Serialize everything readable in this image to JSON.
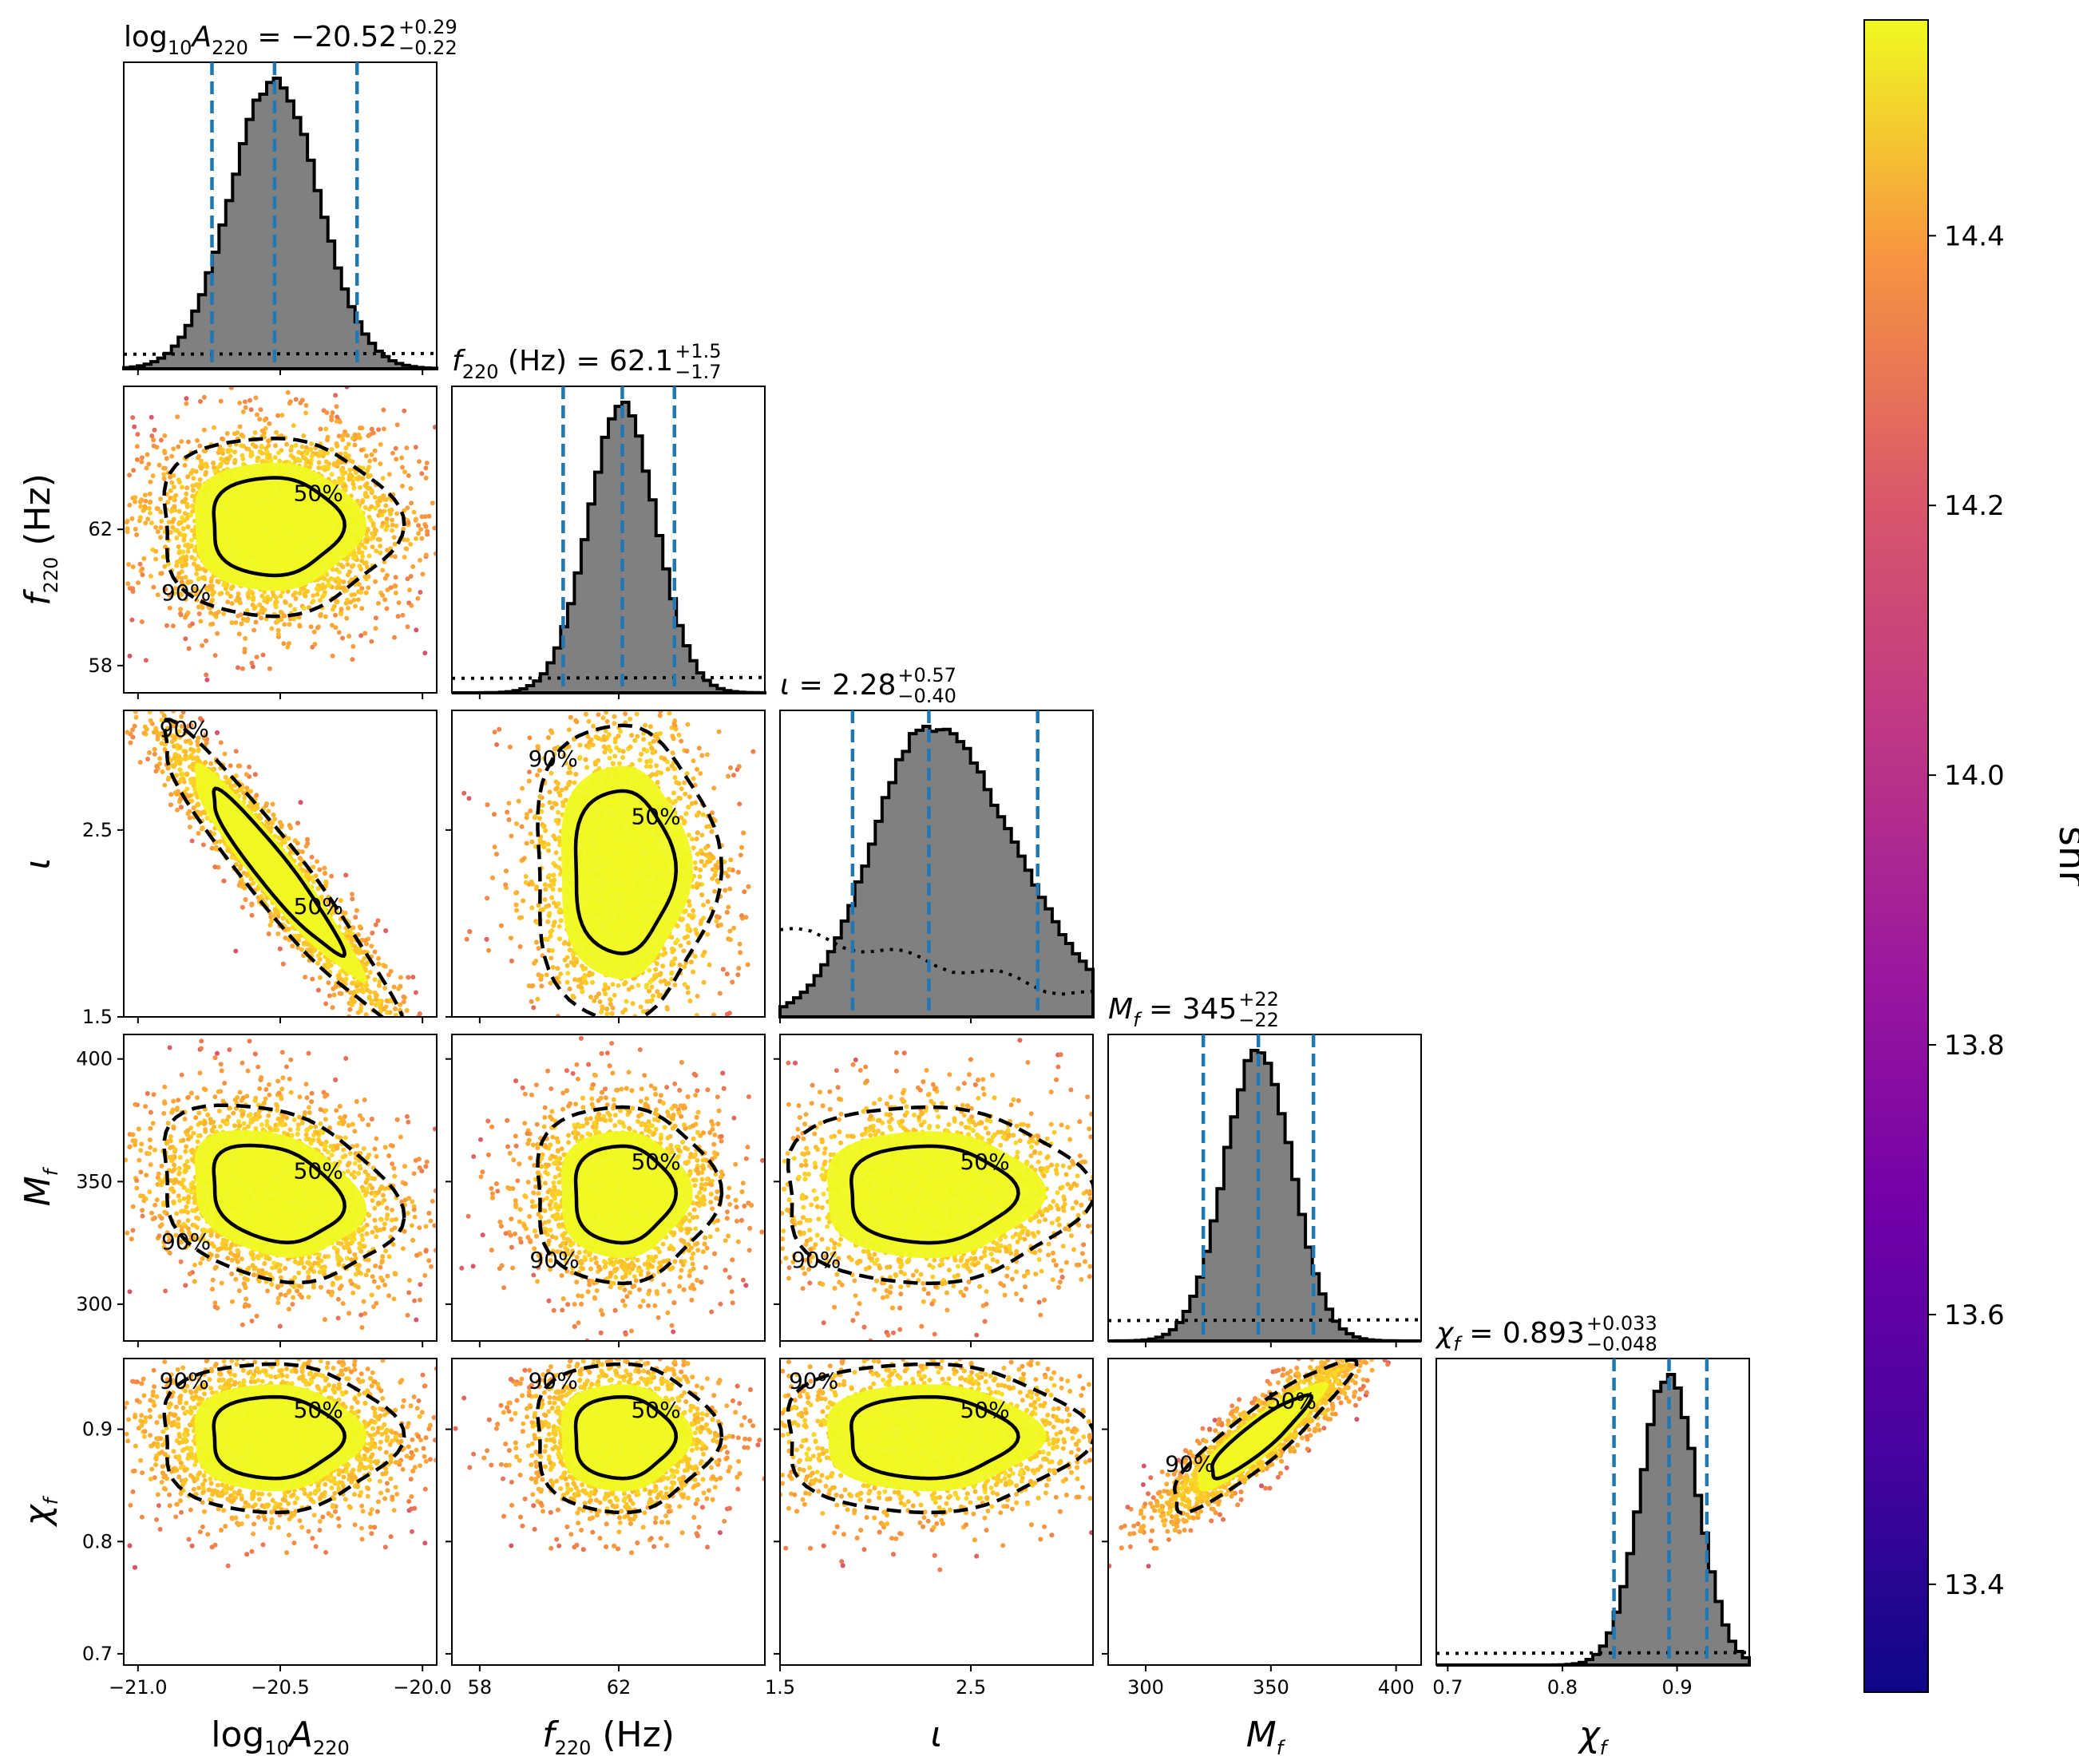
{
  "chart_data": {
    "type": "scatter",
    "kind": "corner",
    "parameters": [
      {
        "label_html": "log<tspan baseline-shift='-10' font-size='24'>10</tspan><tspan font-style='italic'>A</tspan><tspan baseline-shift='-10' font-size='24'>220</tspan>",
        "range": [
          -21.05,
          -19.95
        ],
        "ticks": [
          -21.0,
          -20.5,
          -20.0
        ],
        "tick_labels": [
          "−21.0",
          "−20.5",
          "−20.0"
        ],
        "median": -20.52,
        "plus": 0.29,
        "minus": 0.22
      },
      {
        "label_html": "<tspan font-style='italic'>f</tspan><tspan baseline-shift='-10' font-size='24'>220</tspan> (Hz)",
        "range": [
          57.2,
          66.2
        ],
        "ticks": [
          58,
          62
        ],
        "tick_labels": [
          "58",
          "62"
        ],
        "median": 62.1,
        "plus": 1.5,
        "minus": 1.7
      },
      {
        "label_html": "<tspan font-style='italic'>ι</tspan>",
        "range": [
          1.5,
          3.14
        ],
        "ticks": [
          1.5,
          2.5
        ],
        "tick_labels": [
          "1.5",
          "2.5"
        ],
        "median": 2.28,
        "plus": 0.57,
        "minus": 0.4
      },
      {
        "label_html": "<tspan font-style='italic'>M</tspan><tspan baseline-shift='-10' font-size='24' font-style='italic'>f</tspan>",
        "range": [
          285,
          410
        ],
        "ticks": [
          300,
          350,
          400
        ],
        "tick_labels": [
          "300",
          "350",
          "400"
        ],
        "median": 345,
        "plus": 22,
        "minus": 22
      },
      {
        "label_html": "<tspan font-style='italic'>χ</tspan><tspan baseline-shift='-10' font-size='24' font-style='italic'>f</tspan>",
        "range": [
          0.69,
          0.963
        ],
        "ticks": [
          0.7,
          0.8,
          0.9
        ],
        "tick_labels": [
          "0.7",
          "0.8",
          "0.9"
        ],
        "median": 0.893,
        "plus": 0.033,
        "minus": 0.048
      }
    ],
    "titles": [
      {
        "lhs_html": "log<tspan baseline-shift='-10' font-size='24'>10</tspan><tspan font-style='italic'>A</tspan><tspan baseline-shift='-10' font-size='24'>220</tspan> = −20.52",
        "plus": "+0.29",
        "minus": "−0.22"
      },
      {
        "lhs_html": "<tspan font-style='italic'>f</tspan><tspan baseline-shift='-10' font-size='24'>220</tspan> (Hz) = 62.1",
        "plus": "+1.5",
        "minus": "−1.7"
      },
      {
        "lhs_html": "<tspan font-style='italic'>ι</tspan> = 2.28",
        "plus": "+0.57",
        "minus": "−0.40"
      },
      {
        "lhs_html": "<tspan font-style='italic'>M</tspan><tspan baseline-shift='-10' font-size='24' font-style='italic'>f</tspan> = 345",
        "plus": "+22",
        "minus": "−22"
      },
      {
        "lhs_html": "<tspan font-style='italic'>χ</tspan><tspan baseline-shift='-10' font-size='24' font-style='italic'>f</tspan> = 0.893",
        "plus": "+0.033",
        "minus": "−0.048"
      }
    ],
    "quantiles": {
      "0": [
        -20.74,
        -20.52,
        -20.23
      ],
      "1": [
        60.4,
        62.1,
        63.6
      ],
      "2": [
        1.88,
        2.28,
        2.85
      ],
      "3": [
        323,
        345,
        367
      ],
      "4": [
        0.845,
        0.893,
        0.926
      ]
    },
    "correlations": {
      "1-0": 0.0,
      "2-0": -0.95,
      "2-1": 0.0,
      "3-0": -0.25,
      "3-1": 0.0,
      "3-2": 0.0,
      "4-0": 0.0,
      "4-1": 0.0,
      "4-2": 0.0,
      "4-3": 0.9
    },
    "skew": {
      "2": 0.5
    },
    "prior_levels": [
      0.05,
      0.05,
      0.3,
      0.07,
      0.04
    ],
    "contour_labels": {
      "inner": "50%",
      "outer": "90%"
    },
    "colorbar": {
      "label": "snr",
      "min": 13.32,
      "max": 14.56,
      "ticks": [
        13.4,
        13.6,
        13.8,
        14.0,
        14.2,
        14.4
      ],
      "tick_labels": [
        "13.4",
        "13.6",
        "13.8",
        "14.0",
        "14.2",
        "14.4"
      ]
    },
    "colors": {
      "hist_fill": "#808080",
      "median_lines": "#1f77b4",
      "inner_fill": "#f0f921"
    },
    "colormap": "plasma"
  }
}
